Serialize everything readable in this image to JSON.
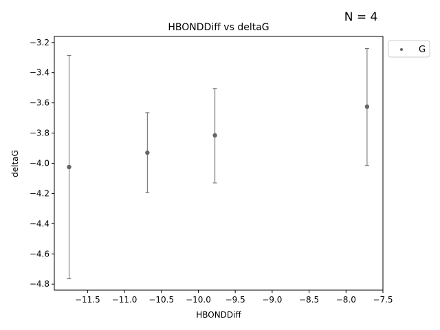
{
  "chart_data": {
    "type": "scatter",
    "title": "HBONDDiff vs deltaG",
    "xlabel": "HBONDDiff",
    "ylabel": "deltaG",
    "annotation": "N = 4",
    "xlim": [
      -11.95,
      -7.5
    ],
    "ylim": [
      -4.84,
      -3.16
    ],
    "xticks": [
      -11.5,
      -11.0,
      -10.5,
      -10.0,
      -9.5,
      -9.0,
      -8.5,
      -8.0,
      -7.5
    ],
    "xtick_labels": [
      "−11.5",
      "−11.0",
      "−10.5",
      "−10.0",
      "−9.5",
      "−9.0",
      "−8.5",
      "−8.0",
      "−7.5"
    ],
    "yticks": [
      -4.8,
      -4.6,
      -4.4,
      -4.2,
      -4.0,
      -3.8,
      -3.6,
      -3.4,
      -3.2
    ],
    "ytick_labels": [
      "−4.8",
      "−4.6",
      "−4.4",
      "−4.2",
      "−4.0",
      "−3.8",
      "−3.6",
      "−3.4",
      "−3.2"
    ],
    "grid": false,
    "legend_position": "outside-top-right",
    "color": "#666666",
    "series": [
      {
        "name": "G",
        "points": [
          {
            "x": -11.75,
            "y": -4.025,
            "err_low": -4.765,
            "err_high": -3.285
          },
          {
            "x": -10.69,
            "y": -3.93,
            "err_low": -4.195,
            "err_high": -3.665
          },
          {
            "x": -9.775,
            "y": -3.815,
            "err_low": -4.13,
            "err_high": -3.505
          },
          {
            "x": -7.715,
            "y": -3.625,
            "err_low": -4.015,
            "err_high": -3.24
          }
        ]
      }
    ]
  }
}
